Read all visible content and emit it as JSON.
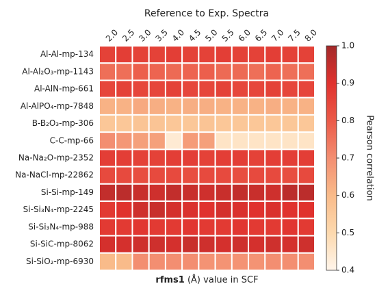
{
  "chart_data": {
    "type": "heatmap",
    "title": "Reference to Exp. Spectra",
    "xlabel": "rfms1 (Å) value in SCF",
    "colorbar_label": "Pearson correlation",
    "x_categories": [
      "2.0",
      "2.5",
      "3.0",
      "3.5",
      "4.0",
      "4.5",
      "5.0",
      "5.5",
      "6.0",
      "6.5",
      "7.0",
      "7.5",
      "8.0"
    ],
    "y_categories": [
      "Al-Al-mp-134",
      "Al-Al₂O₃-mp-1143",
      "Al-AlN-mp-661",
      "Al-AlPO₄-mp-7848",
      "B-B₂O₃-mp-306",
      "C-C-mp-66",
      "Na-Na₂O-mp-2352",
      "Na-NaCl-mp-22862",
      "Si-Si-mp-149",
      "Si-Si₃N₄-mp-2245",
      "Si-Si₃N₄-mp-988",
      "Si-SiC-mp-8062",
      "Si-SiO₂-mp-6930"
    ],
    "values": [
      [
        0.86,
        0.87,
        0.86,
        0.86,
        0.87,
        0.86,
        0.86,
        0.87,
        0.86,
        0.86,
        0.87,
        0.86,
        0.86
      ],
      [
        0.76,
        0.76,
        0.79,
        0.78,
        0.77,
        0.78,
        0.79,
        0.77,
        0.77,
        0.76,
        0.78,
        0.76,
        0.76
      ],
      [
        0.85,
        0.86,
        0.85,
        0.85,
        0.86,
        0.85,
        0.85,
        0.86,
        0.85,
        0.85,
        0.86,
        0.85,
        0.85
      ],
      [
        0.62,
        0.62,
        0.64,
        0.63,
        0.62,
        0.63,
        0.63,
        0.62,
        0.62,
        0.62,
        0.63,
        0.62,
        0.62
      ],
      [
        0.56,
        0.56,
        0.57,
        0.57,
        0.56,
        0.56,
        0.57,
        0.56,
        0.56,
        0.56,
        0.56,
        0.56,
        0.56
      ],
      [
        0.7,
        0.68,
        0.66,
        0.66,
        0.44,
        0.67,
        0.66,
        0.46,
        0.46,
        0.46,
        0.46,
        0.46,
        0.46
      ],
      [
        0.87,
        0.87,
        0.86,
        0.86,
        0.87,
        0.87,
        0.86,
        0.87,
        0.87,
        0.86,
        0.87,
        0.87,
        0.87
      ],
      [
        0.84,
        0.84,
        0.83,
        0.84,
        0.84,
        0.83,
        0.84,
        0.84,
        0.83,
        0.84,
        0.84,
        0.83,
        0.84
      ],
      [
        0.95,
        0.96,
        0.94,
        0.93,
        0.95,
        0.94,
        0.93,
        0.94,
        0.95,
        0.94,
        0.93,
        0.96,
        0.96
      ],
      [
        0.88,
        0.9,
        0.93,
        0.94,
        0.92,
        0.91,
        0.9,
        0.92,
        0.91,
        0.9,
        0.91,
        0.9,
        0.9
      ],
      [
        0.88,
        0.88,
        0.89,
        0.88,
        0.88,
        0.89,
        0.88,
        0.88,
        0.89,
        0.88,
        0.88,
        0.89,
        0.88
      ],
      [
        0.92,
        0.92,
        0.93,
        0.93,
        0.92,
        0.94,
        0.93,
        0.92,
        0.93,
        0.92,
        0.93,
        0.92,
        0.93
      ],
      [
        0.6,
        0.6,
        0.7,
        0.7,
        0.7,
        0.7,
        0.69,
        0.69,
        0.69,
        0.69,
        0.7,
        0.7,
        0.7
      ]
    ],
    "zlim": [
      0.4,
      1.0
    ],
    "zticks": [
      0.4,
      0.5,
      0.6,
      0.7,
      0.8,
      0.9,
      {
        "value": 1,
        "label": "1.0"
      }
    ],
    "colorscale": [
      "#fff5eb",
      "#fdd9ae",
      "#f9bb8a",
      "#f38e71",
      "#eb5a48",
      "#e0322e",
      "#a32a2a"
    ]
  }
}
